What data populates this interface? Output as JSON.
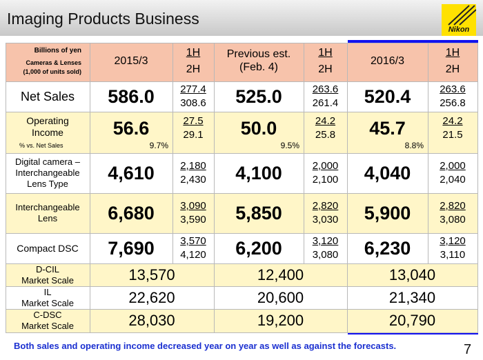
{
  "header": {
    "title": "Imaging Products Business",
    "logo": "Nikon"
  },
  "table": {
    "units": [
      "Billions of yen",
      "Cameras & Lenses",
      "(1,000 of units sold)"
    ],
    "columns": [
      {
        "label": [
          "2015/3"
        ],
        "half": [
          "1H",
          "2H"
        ]
      },
      {
        "label": [
          "Previous est.",
          "(Feb. 4)"
        ],
        "half": [
          "1H",
          "2H"
        ]
      },
      {
        "label": [
          "2016/3"
        ],
        "half": [
          "1H",
          "2H"
        ]
      }
    ],
    "rows": [
      {
        "label": [
          "Net Sales"
        ],
        "cells": [
          {
            "total": "586.0",
            "h1": "277.4",
            "h2": "308.6"
          },
          {
            "total": "525.0",
            "h1": "263.6",
            "h2": "261.4"
          },
          {
            "total": "520.4",
            "h1": "263.6",
            "h2": "256.8"
          }
        ]
      },
      {
        "label": [
          "Operating",
          "Income"
        ],
        "sub": "% vs. Net Sales",
        "cells": [
          {
            "total": "56.6",
            "ratio": "9.7%",
            "h1": "27.5",
            "h2": "29.1"
          },
          {
            "total": "50.0",
            "ratio": "9.5%",
            "h1": "24.2",
            "h2": "25.8"
          },
          {
            "total": "45.7",
            "ratio": "8.8%",
            "h1": "24.2",
            "h2": "21.5"
          }
        ]
      },
      {
        "label": [
          "Digital camera –",
          "Interchangeable",
          "Lens Type"
        ],
        "cells": [
          {
            "total": "4,610",
            "h1": "2,180",
            "h2": "2,430"
          },
          {
            "total": "4,100",
            "h1": "2,000",
            "h2": "2,100"
          },
          {
            "total": "4,040",
            "h1": "2,000",
            "h2": "2,040"
          }
        ]
      },
      {
        "label": [
          "Interchangeable",
          "Lens"
        ],
        "cells": [
          {
            "total": "6,680",
            "h1": "3,090",
            "h2": "3,590"
          },
          {
            "total": "5,850",
            "h1": "2,820",
            "h2": "3,030"
          },
          {
            "total": "5,900",
            "h1": "2,820",
            "h2": "3,080"
          }
        ]
      },
      {
        "label": [
          "Compact DSC"
        ],
        "cells": [
          {
            "total": "7,690",
            "h1": "3,570",
            "h2": "4,120"
          },
          {
            "total": "6,200",
            "h1": "3,120",
            "h2": "3,080"
          },
          {
            "total": "6,230",
            "h1": "3,120",
            "h2": "3,110"
          }
        ]
      },
      {
        "label": [
          "D-CIL",
          "Market Scale"
        ],
        "cells": [
          {
            "total": "13,570"
          },
          {
            "total": "12,400"
          },
          {
            "total": "13,040"
          }
        ]
      },
      {
        "label": [
          "IL",
          "Market Scale"
        ],
        "cells": [
          {
            "total": "22,620"
          },
          {
            "total": "20,600"
          },
          {
            "total": "21,340"
          }
        ]
      },
      {
        "label": [
          "C-DSC",
          "Market Scale"
        ],
        "cells": [
          {
            "total": "28,030"
          },
          {
            "total": "19,200"
          },
          {
            "total": "20,790"
          }
        ]
      }
    ]
  },
  "footer": {
    "note": "Both sales and operating income decreased year on year as well as against the forecasts.",
    "page": "7"
  }
}
